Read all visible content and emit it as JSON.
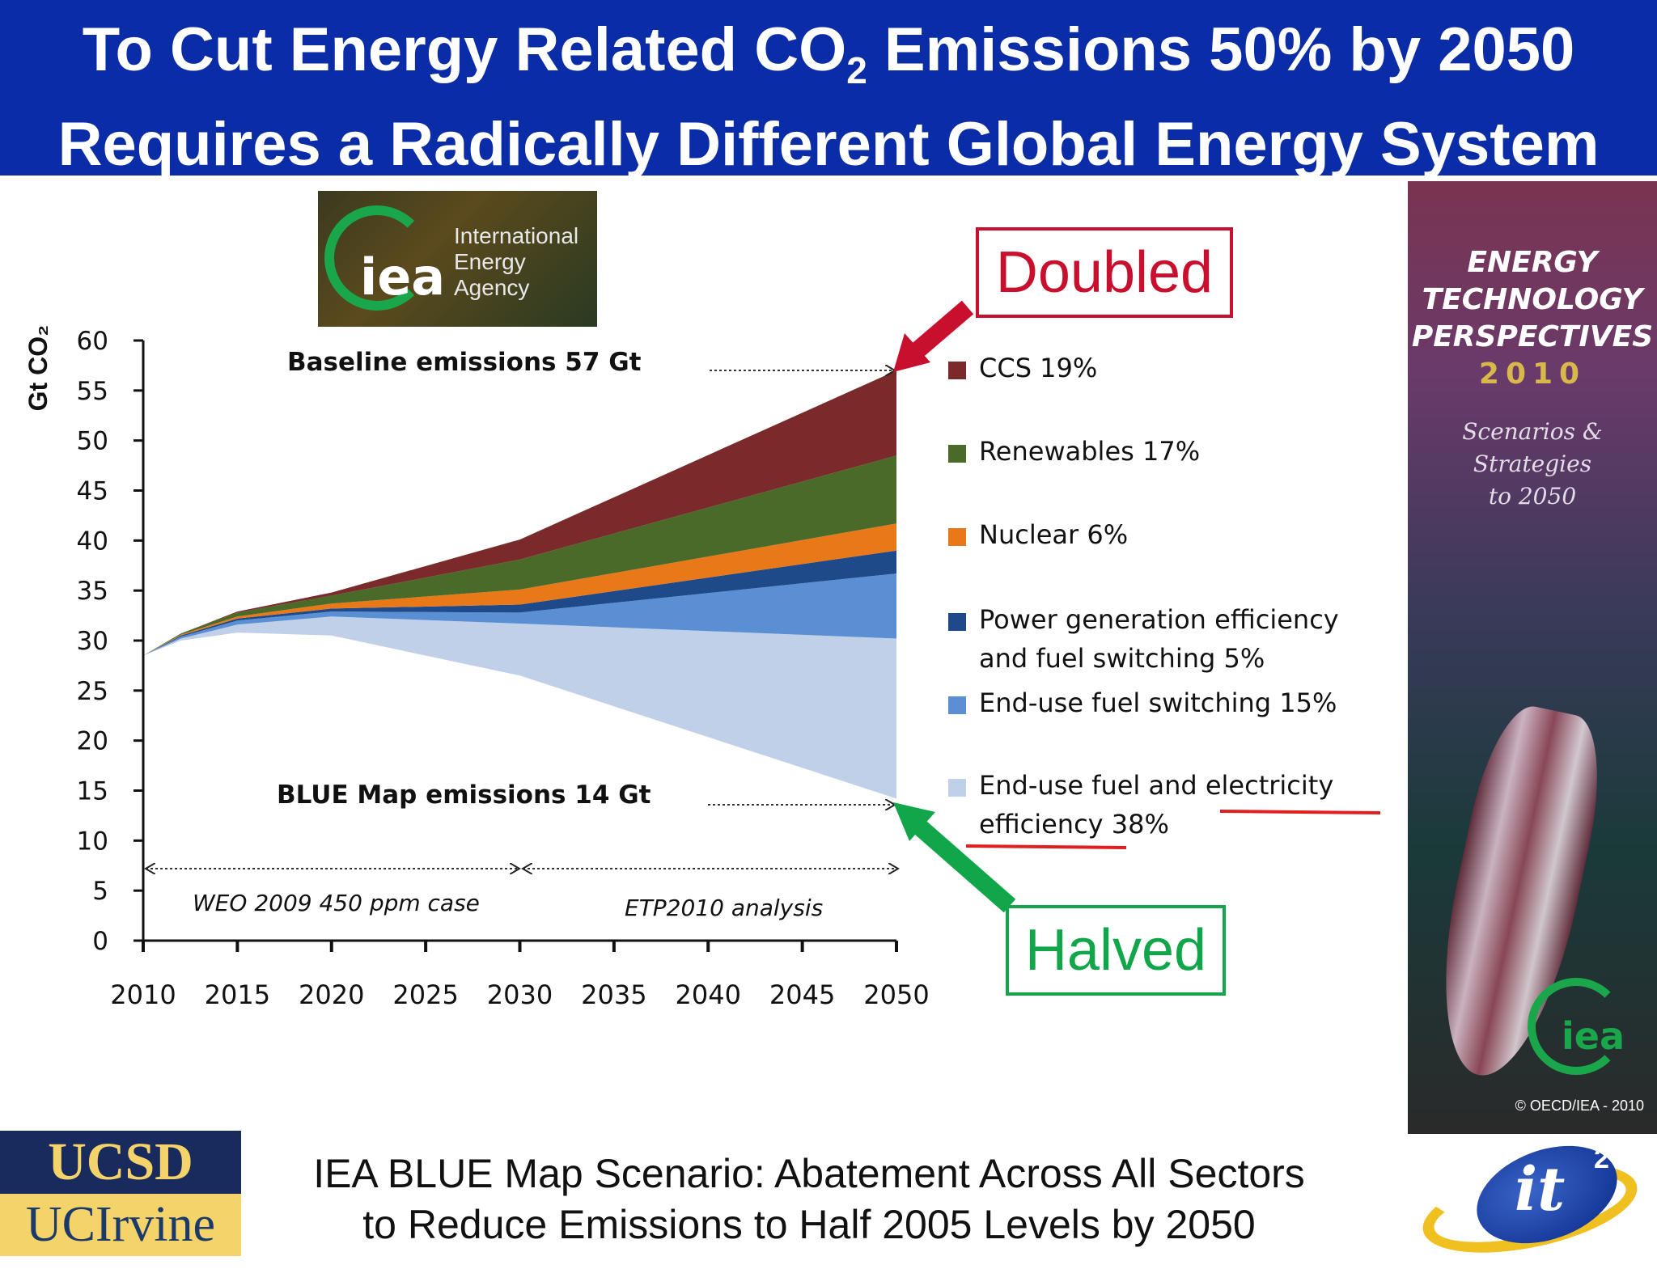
{
  "header": {
    "line1_pre": "To Cut Energy Related CO",
    "line1_sub": "2",
    "line1_post": " Emissions 50% by 2050",
    "line2": "Requires a Radically Different Global Energy System"
  },
  "iea_logo": {
    "mark": "iea",
    "name_line1": "International",
    "name_line2": "Energy Agency"
  },
  "callouts": {
    "doubled": "Doubled",
    "halved": "Halved",
    "doubled_color": "#c8102e",
    "halved_color": "#12a64a"
  },
  "chart_data": {
    "type": "area",
    "ylabel": "Gt CO₂",
    "ylim": [
      0,
      60
    ],
    "yticks": [
      "0",
      "5",
      "10",
      "15",
      "20",
      "25",
      "30",
      "35",
      "40",
      "45",
      "50",
      "55",
      "60"
    ],
    "xticks": [
      "2010",
      "2015",
      "2020",
      "2025",
      "2030",
      "2035",
      "2040",
      "2045",
      "2050"
    ],
    "x": [
      2010,
      2012,
      2015,
      2020,
      2030,
      2050
    ],
    "blue_map_emissions": [
      28.5,
      30,
      30.8,
      30.5,
      26.5,
      14.2
    ],
    "series": [
      {
        "name": "End-use fuel and electricity efficiency 38%",
        "color": "#c0d0e8",
        "values": [
          0,
          0.2,
          0.8,
          1.9,
          5.2,
          16
        ]
      },
      {
        "name": "End-use fuel switching 15%",
        "color": "#5a8fd4",
        "values": [
          0,
          0.2,
          0.4,
          0.5,
          1.1,
          6.5
        ]
      },
      {
        "name": "Power generation efficiency and fuel switching 5%",
        "color": "#1f4a8a",
        "values": [
          0,
          0.1,
          0.2,
          0.3,
          0.8,
          2.3
        ]
      },
      {
        "name": "Nuclear 6%",
        "color": "#e87818",
        "values": [
          0,
          0.1,
          0.2,
          0.5,
          1.5,
          2.7
        ]
      },
      {
        "name": "Renewables 17%",
        "color": "#4a6a2a",
        "values": [
          0,
          0.1,
          0.4,
          0.8,
          3,
          6.8
        ]
      },
      {
        "name": "CCS 19%",
        "color": "#7a2a2a",
        "values": [
          0,
          0,
          0.1,
          0.3,
          2,
          8.5
        ]
      }
    ],
    "annotations": {
      "baseline": "Baseline emissions 57 Gt",
      "bluemap": "BLUE Map emissions 14 Gt",
      "weo": "WEO 2009 450 ppm case",
      "etp": "ETP2010 analysis"
    }
  },
  "book_cover": {
    "title_line1": "ENERGY",
    "title_line2": "TECHNOLOGY",
    "title_line3": "PERSPECTIVES",
    "year": "2010",
    "subtitle_line1": "Scenarios &",
    "subtitle_line2": "Strategies",
    "subtitle_line3": "to 2050",
    "logo_mark": "iea",
    "copyright": "© OECD/IEA - 2010"
  },
  "institutions": {
    "ucsd": "UCSD",
    "uci": "UCIrvine"
  },
  "caption": {
    "line1": "IEA BLUE Map Scenario: Abatement Across All Sectors",
    "line2": "to Reduce Emissions to Half 2005 Levels by 2050"
  },
  "it2_logo": {
    "word": "it",
    "sup": "2"
  }
}
